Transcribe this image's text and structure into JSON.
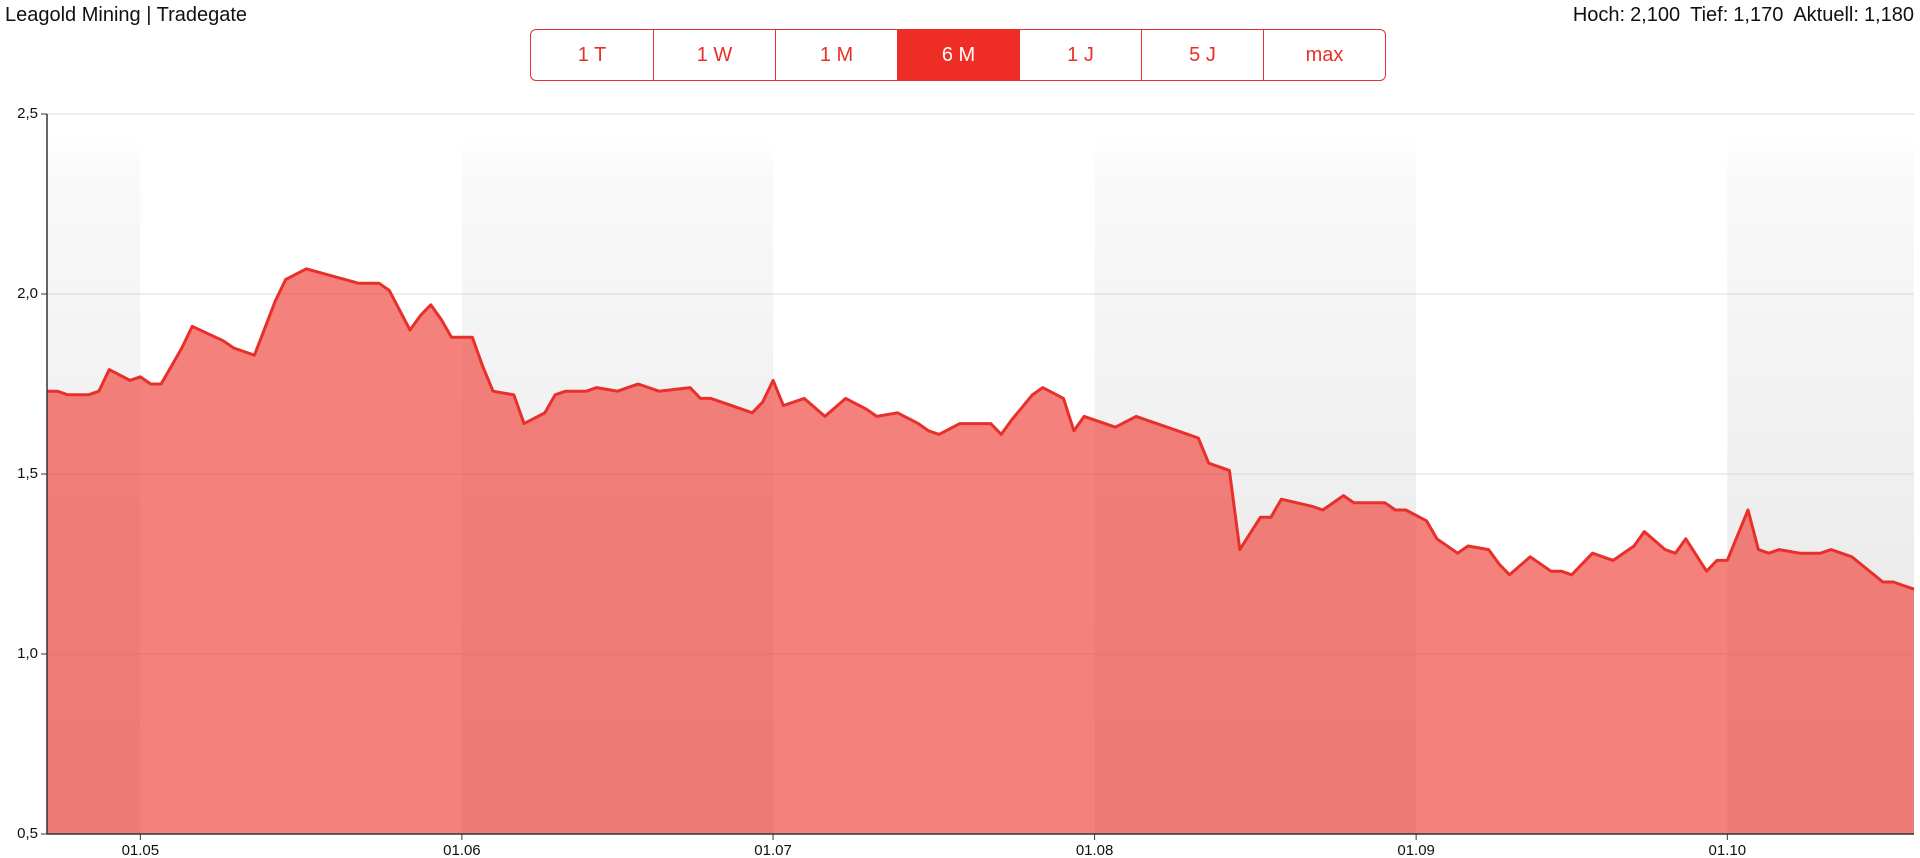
{
  "header": {
    "stats": [
      {
        "label": "Hoch:",
        "value": "2,100"
      },
      {
        "label": "Tief:",
        "value": "1,170"
      },
      {
        "label": "Aktuell:",
        "value": "1,180"
      }
    ],
    "range_buttons": [
      "1 T",
      "1 W",
      "1 M",
      "6 M",
      "1 J",
      "5 J",
      "max"
    ],
    "selected_range": "6 M"
  },
  "chart_data": {
    "type": "area",
    "title": "Leagold Mining | Tradegate",
    "color": "#e8302a",
    "fill": "#f0504a",
    "x": [
      "22.04",
      "23.04",
      "24.04",
      "26.04",
      "27.04",
      "28.04",
      "30.04",
      "01.05",
      "02.05",
      "03.05",
      "04.05",
      "05.05",
      "06.05",
      "09.05",
      "10.05",
      "12.05",
      "14.05",
      "15.05",
      "17.05",
      "22.05",
      "24.05",
      "25.05",
      "27.05",
      "28.05",
      "29.05",
      "30.05",
      "31.05",
      "02.06",
      "03.06",
      "04.06",
      "06.06",
      "07.06",
      "09.06",
      "10.06",
      "11.06",
      "13.06",
      "14.06",
      "16.06",
      "17.06",
      "18.06",
      "20.06",
      "23.06",
      "24.06",
      "25.06",
      "27.06",
      "29.06",
      "30.06",
      "01.07",
      "02.07",
      "04.07",
      "06.07",
      "08.07",
      "10.07",
      "11.07",
      "13.07",
      "15.07",
      "16.07",
      "17.07",
      "19.07",
      "22.07",
      "23.07",
      "24.07",
      "26.07",
      "27.07",
      "29.07",
      "30.07",
      "31.07",
      "02.08",
      "03.08",
      "05.08",
      "07.08",
      "09.08",
      "11.08",
      "12.08",
      "14.08",
      "15.08",
      "17.08",
      "18.08",
      "19.08",
      "22.08",
      "23.08",
      "25.08",
      "26.08",
      "29.08",
      "30.08",
      "31.08",
      "02.09",
      "03.09",
      "05.09",
      "06.09",
      "08.09",
      "09.09",
      "10.09",
      "12.09",
      "14.09",
      "15.09",
      "16.09",
      "18.09",
      "20.09",
      "22.09",
      "23.09",
      "25.09",
      "26.09",
      "27.09",
      "29.09",
      "30.09",
      "01.10",
      "03.10",
      "04.10",
      "05.10",
      "06.10",
      "08.10",
      "10.10",
      "11.10",
      "13.10",
      "16.10",
      "17.10",
      "19.10"
    ],
    "values": [
      1.73,
      1.73,
      1.72,
      1.72,
      1.73,
      1.79,
      1.76,
      1.77,
      1.75,
      1.75,
      1.8,
      1.85,
      1.91,
      1.87,
      1.85,
      1.83,
      1.98,
      2.04,
      2.07,
      2.03,
      2.03,
      2.01,
      1.9,
      1.94,
      1.97,
      1.93,
      1.88,
      1.88,
      1.8,
      1.73,
      1.72,
      1.64,
      1.67,
      1.72,
      1.73,
      1.73,
      1.74,
      1.73,
      1.74,
      1.75,
      1.73,
      1.74,
      1.71,
      1.71,
      1.69,
      1.67,
      1.7,
      1.76,
      1.69,
      1.71,
      1.66,
      1.71,
      1.68,
      1.66,
      1.67,
      1.64,
      1.62,
      1.61,
      1.64,
      1.64,
      1.61,
      1.65,
      1.72,
      1.74,
      1.71,
      1.62,
      1.66,
      1.64,
      1.63,
      1.66,
      1.64,
      1.62,
      1.6,
      1.53,
      1.51,
      1.29,
      1.38,
      1.38,
      1.43,
      1.41,
      1.4,
      1.44,
      1.42,
      1.42,
      1.4,
      1.4,
      1.37,
      1.32,
      1.28,
      1.3,
      1.29,
      1.25,
      1.22,
      1.27,
      1.23,
      1.23,
      1.22,
      1.28,
      1.26,
      1.3,
      1.34,
      1.29,
      1.28,
      1.32,
      1.23,
      1.26,
      1.26,
      1.4,
      1.29,
      1.28,
      1.29,
      1.28,
      1.28,
      1.29,
      1.27,
      1.2,
      1.2,
      1.18
    ],
    "xlim": [
      "22.04",
      "19.10"
    ],
    "xticks": [
      "01.05",
      "01.06",
      "01.07",
      "01.08",
      "01.09",
      "01.10"
    ],
    "ylim": [
      0.5,
      2.5
    ],
    "yticks": [
      {
        "value": 0.5,
        "label": "0,5"
      },
      {
        "value": 1.0,
        "label": "1,0"
      },
      {
        "value": 1.5,
        "label": "1,5"
      },
      {
        "value": 2.0,
        "label": "2,0"
      },
      {
        "value": 2.5,
        "label": "2,5"
      }
    ],
    "grid": true,
    "alternating_month_shading": true
  }
}
